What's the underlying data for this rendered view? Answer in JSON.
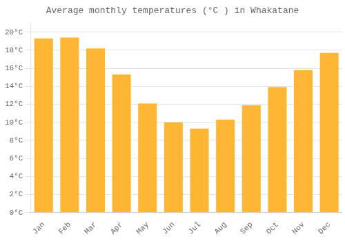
{
  "chart_data": {
    "type": "bar",
    "title": "Average monthly temperatures (°C ) in Whakatane",
    "categories": [
      "Jan",
      "Feb",
      "Mar",
      "Apr",
      "May",
      "Jun",
      "Jul",
      "Aug",
      "Sep",
      "Oct",
      "Nov",
      "Dec"
    ],
    "values": [
      19.3,
      19.4,
      18.2,
      15.3,
      12.1,
      10.0,
      9.3,
      10.3,
      11.9,
      13.9,
      15.8,
      17.7
    ],
    "color": "#FFB733",
    "ylim": [
      0,
      21
    ],
    "yticks": [
      {
        "value": 0,
        "label": "0°C"
      },
      {
        "value": 2,
        "label": "2°C"
      },
      {
        "value": 4,
        "label": "4°C"
      },
      {
        "value": 6,
        "label": "6°C"
      },
      {
        "value": 8,
        "label": "8°C"
      },
      {
        "value": 10,
        "label": "10°C"
      },
      {
        "value": 12,
        "label": "12°C"
      },
      {
        "value": 14,
        "label": "14°C"
      },
      {
        "value": 16,
        "label": "16°C"
      },
      {
        "value": 18,
        "label": "18°C"
      },
      {
        "value": 20,
        "label": "20°C"
      }
    ],
    "grid": true
  }
}
